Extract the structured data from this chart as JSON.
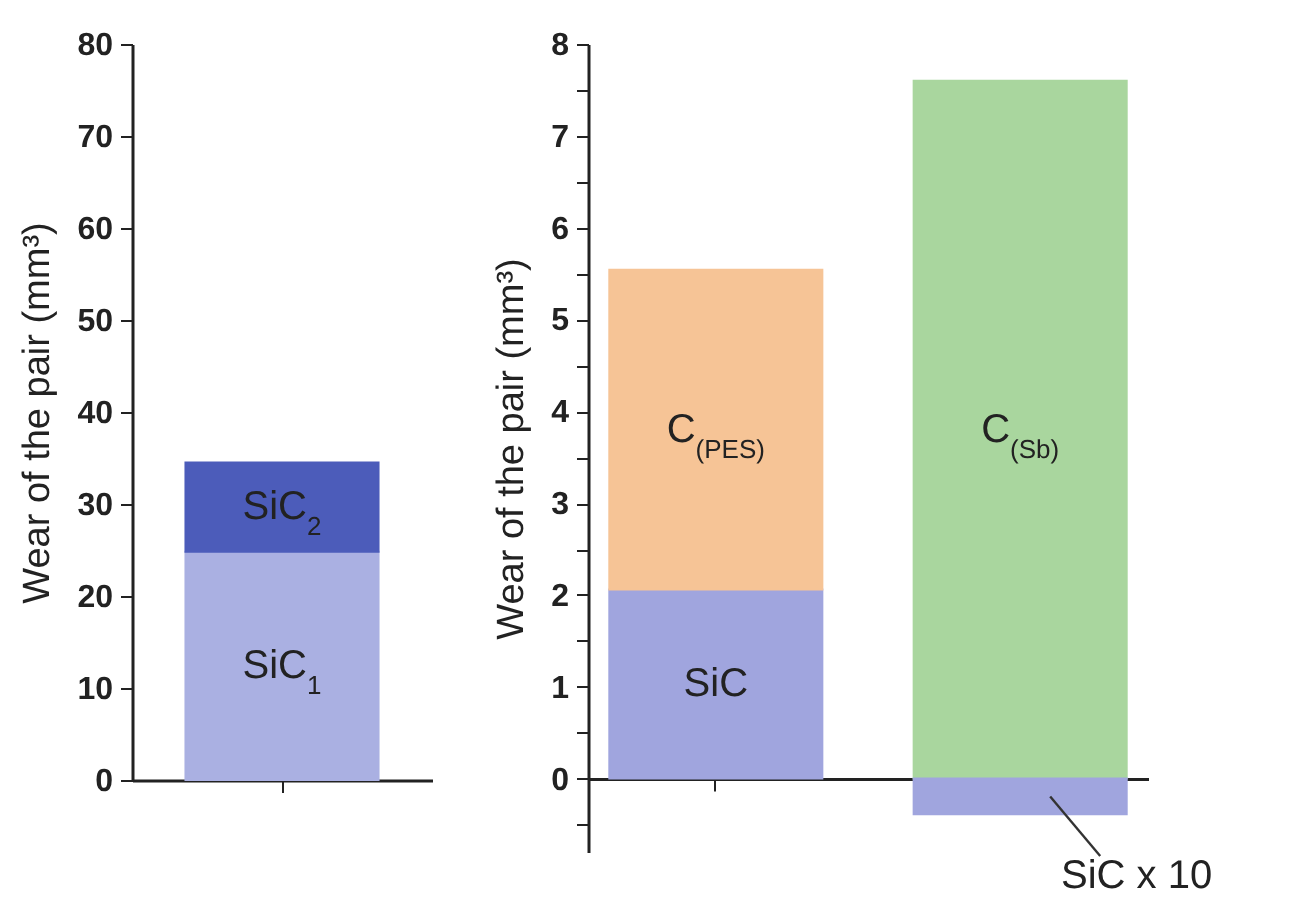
{
  "chart_data": [
    {
      "type": "bar",
      "stacked": true,
      "categories": [
        null
      ],
      "ylabel": "Wear of the pair (mm³)",
      "ylim": [
        0,
        80
      ],
      "yticks": [
        0,
        10,
        20,
        30,
        40,
        50,
        60,
        70,
        80
      ],
      "series": [
        {
          "name": "SiC$_{1}$",
          "color": "#aab0e2",
          "values": [
            24.8
          ]
        },
        {
          "name": "SiC$_{2}$",
          "color": "#4c5cba",
          "values": [
            9.7
          ]
        }
      ]
    },
    {
      "type": "bar",
      "stacked": true,
      "categories": [
        null,
        null
      ],
      "ylabel": "Wear of the pair (mm³)",
      "ylim": [
        -0.8,
        8
      ],
      "yticks": [
        {
          "value": -0.5,
          "label": null
        },
        0,
        {
          "value": 0.5,
          "label": null
        },
        1,
        {
          "value": 1.5,
          "label": null
        },
        2,
        {
          "value": 2.5,
          "label": null
        },
        3,
        {
          "value": 3.5,
          "label": null
        },
        4,
        {
          "value": 4.5,
          "label": null
        },
        5,
        {
          "value": 5.5,
          "label": null
        },
        6,
        {
          "value": 6.5,
          "label": null
        },
        7,
        {
          "value": 7.5,
          "label": null
        },
        8
      ],
      "series": [
        {
          "name": "SiC",
          "color": "#a0a5de",
          "values": [
            2.06,
            null
          ]
        },
        {
          "name": "C$_{(PES)}$",
          "color": "#f6c496",
          "values": [
            3.48,
            null
          ]
        },
        {
          "name": "C$_{(Sb)}$",
          "color": "#a9d69e",
          "values": [
            null,
            7.6
          ]
        },
        {
          "name": "SiC x 10",
          "color": "#a0a5de",
          "values": [
            null,
            -0.39
          ]
        }
      ]
    }
  ]
}
